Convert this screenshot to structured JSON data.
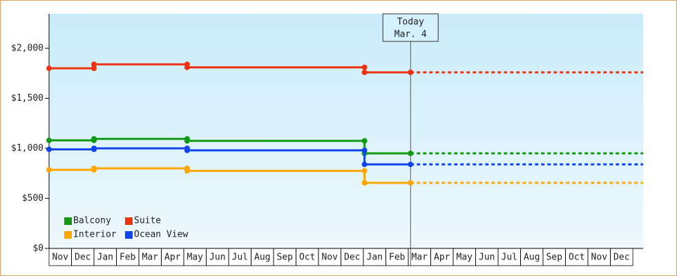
{
  "chart_data": {
    "type": "step-line",
    "categories": [
      "Nov",
      "Dec",
      "Jan",
      "Feb",
      "Mar",
      "Apr",
      "May",
      "Jun",
      "Jul",
      "Aug",
      "Sep",
      "Oct",
      "Nov",
      "Dec",
      "Jan",
      "Feb",
      "Mar",
      "Apr",
      "May",
      "Jun",
      "Jul",
      "Aug",
      "Sep",
      "Oct",
      "Nov",
      "Dec"
    ],
    "xlim": [
      0,
      26.46
    ],
    "ylim": [
      0,
      2345
    ],
    "yticks": [
      {
        "value": 0,
        "label": "$0"
      },
      {
        "value": 500,
        "label": "$500"
      },
      {
        "value": 1000,
        "label": "$1,000"
      },
      {
        "value": 1500,
        "label": "$1,500"
      },
      {
        "value": 2000,
        "label": "$2,000"
      }
    ],
    "legend": "bottom-left",
    "annotation": {
      "text": [
        "Today",
        "Mar. 4"
      ],
      "x": 16.1
    },
    "series": [
      {
        "name": "Balcony",
        "color": "#119911",
        "x": [
          0,
          2,
          2,
          6.15,
          6.15,
          14.05,
          14.05,
          16.1
        ],
        "values": [
          1080,
          1080,
          1095,
          1095,
          1075,
          1075,
          950,
          950
        ]
      },
      {
        "name": "Suite",
        "color": "#ee3311",
        "x": [
          0,
          2,
          2,
          6.15,
          6.15,
          14.05,
          14.05,
          16.1
        ],
        "values": [
          1800,
          1800,
          1840,
          1840,
          1810,
          1810,
          1760,
          1760
        ]
      },
      {
        "name": "Interior",
        "color": "#ffa500",
        "x": [
          0,
          2,
          2,
          6.15,
          6.15,
          14.05,
          14.05,
          16.1
        ],
        "values": [
          785,
          785,
          800,
          800,
          775,
          775,
          655,
          655
        ]
      },
      {
        "name": "Ocean View",
        "color": "#1144ee",
        "x": [
          0,
          2,
          2,
          6.15,
          6.15,
          14.05,
          14.05,
          16.1
        ],
        "values": [
          990,
          990,
          1000,
          1000,
          980,
          980,
          840,
          840
        ]
      }
    ]
  }
}
